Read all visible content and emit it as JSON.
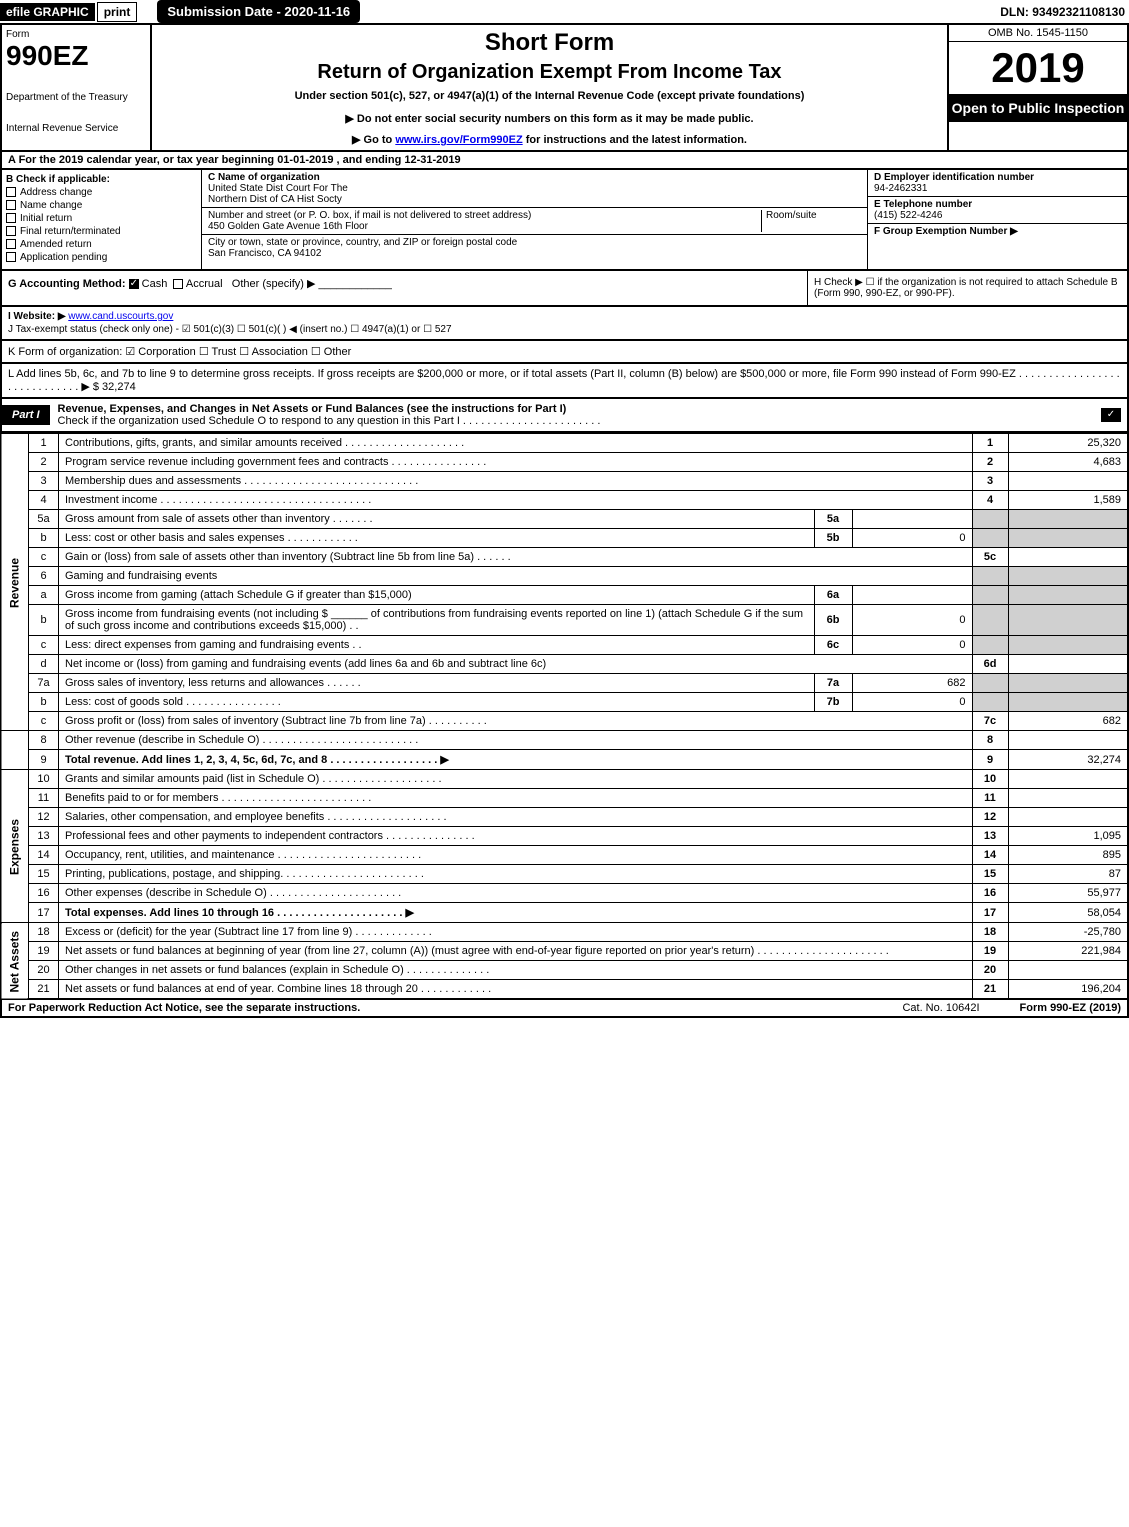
{
  "topbar": {
    "efile": "efile GRAPHIC",
    "print": "print",
    "sub_date": "Submission Date - 2020-11-16",
    "dln": "DLN: 93492321108130"
  },
  "header": {
    "form_label": "Form",
    "form_number": "990EZ",
    "dept": "Department of the Treasury",
    "irs": "Internal Revenue Service",
    "short_form": "Short Form",
    "return_title": "Return of Organization Exempt From Income Tax",
    "under_section": "Under section 501(c), 527, or 4947(a)(1) of the Internal Revenue Code (except private foundations)",
    "do_not": "▶ Do not enter social security numbers on this form as it may be made public.",
    "go_to_prefix": "▶ Go to ",
    "go_to_link": "www.irs.gov/Form990EZ",
    "go_to_suffix": " for instructions and the latest information.",
    "omb": "OMB No. 1545-1150",
    "year": "2019",
    "open": "Open to Public Inspection"
  },
  "line_a": "A For the 2019 calendar year, or tax year beginning 01-01-2019 , and ending 12-31-2019",
  "section_b": {
    "title": "B Check if applicable:",
    "items": [
      "Address change",
      "Name change",
      "Initial return",
      "Final return/terminated",
      "Amended return",
      "Application pending"
    ]
  },
  "section_c": {
    "name_label": "C Name of organization",
    "name_1": "United State Dist Court For The",
    "name_2": "Northern Dist of CA Hist Socty",
    "street_label": "Number and street (or P. O. box, if mail is not delivered to street address)",
    "street": "450 Golden Gate Avenue 16th Floor",
    "room_label": "Room/suite",
    "city_label": "City or town, state or province, country, and ZIP or foreign postal code",
    "city": "San Francisco, CA  94102"
  },
  "section_d": {
    "label": "D Employer identification number",
    "value": "94-2462331"
  },
  "section_e": {
    "label": "E Telephone number",
    "value": "(415) 522-4246"
  },
  "section_f": {
    "label": "F Group Exemption Number  ▶"
  },
  "section_g": {
    "label": "G Accounting Method:",
    "cash": "Cash",
    "accrual": "Accrual",
    "other": "Other (specify) ▶"
  },
  "section_h": "H  Check ▶  ☐  if the organization is not required to attach Schedule B (Form 990, 990-EZ, or 990-PF).",
  "section_i": {
    "label": "I Website: ▶",
    "value": "www.cand.uscourts.gov"
  },
  "section_j": "J Tax-exempt status (check only one) - ☑ 501(c)(3)  ☐ 501(c)(  ) ◀ (insert no.)  ☐ 4947(a)(1) or  ☐ 527",
  "section_k": "K Form of organization:   ☑ Corporation   ☐ Trust   ☐ Association   ☐ Other",
  "section_l": "L Add lines 5b, 6c, and 7b to line 9 to determine gross receipts. If gross receipts are $200,000 or more, or if total assets (Part II, column (B) below) are $500,000 or more, file Form 990 instead of Form 990-EZ . . . . . . . . . . . . . . . . . . . . . . . . . . . . . ▶ $ 32,274",
  "part_i": {
    "label": "Part I",
    "title": "Revenue, Expenses, and Changes in Net Assets or Fund Balances (see the instructions for Part I)",
    "check_line": "Check if the organization used Schedule O to respond to any question in this Part I . . . . . . . . . . . . . . . . . . . . . . ."
  },
  "sides": {
    "revenue": "Revenue",
    "expenses": "Expenses",
    "net": "Net Assets"
  },
  "lines": {
    "l1": {
      "n": "1",
      "d": "Contributions, gifts, grants, and similar amounts received . . . . . . . . . . . . . . . . . . . .",
      "num": "1",
      "v": "25,320"
    },
    "l2": {
      "n": "2",
      "d": "Program service revenue including government fees and contracts . . . . . . . . . . . . . . . .",
      "num": "2",
      "v": "4,683"
    },
    "l3": {
      "n": "3",
      "d": "Membership dues and assessments . . . . . . . . . . . . . . . . . . . . . . . . . . . . .",
      "num": "3",
      "v": ""
    },
    "l4": {
      "n": "4",
      "d": "Investment income . . . . . . . . . . . . . . . . . . . . . . . . . . . . . . . . . . .",
      "num": "4",
      "v": "1,589"
    },
    "l5a": {
      "n": "5a",
      "d": "Gross amount from sale of assets other than inventory . . . . . . .",
      "bn": "5a",
      "bv": ""
    },
    "l5b": {
      "n": "b",
      "d": "Less: cost or other basis and sales expenses . . . . . . . . . . . .",
      "bn": "5b",
      "bv": "0"
    },
    "l5c": {
      "n": "c",
      "d": "Gain or (loss) from sale of assets other than inventory (Subtract line 5b from line 5a) . . . . . .",
      "num": "5c",
      "v": ""
    },
    "l6": {
      "n": "6",
      "d": "Gaming and fundraising events"
    },
    "l6a": {
      "n": "a",
      "d": "Gross income from gaming (attach Schedule G if greater than $15,000)",
      "bn": "6a",
      "bv": ""
    },
    "l6b": {
      "n": "b",
      "d1": "Gross income from fundraising events (not including $ ",
      "d2": " of contributions from fundraising events reported on line 1) (attach Schedule G if the sum of such gross income and contributions exceeds $15,000)   . .",
      "bn": "6b",
      "bv": "0"
    },
    "l6c": {
      "n": "c",
      "d": "Less: direct expenses from gaming and fundraising events      . .",
      "bn": "6c",
      "bv": "0"
    },
    "l6d": {
      "n": "d",
      "d": "Net income or (loss) from gaming and fundraising events (add lines 6a and 6b and subtract line 6c)",
      "num": "6d",
      "v": ""
    },
    "l7a": {
      "n": "7a",
      "d": "Gross sales of inventory, less returns and allowances . . . . . .",
      "bn": "7a",
      "bv": "682"
    },
    "l7b": {
      "n": "b",
      "d": "Less: cost of goods sold        . . . . . . . . . . . . . . . .",
      "bn": "7b",
      "bv": "0"
    },
    "l7c": {
      "n": "c",
      "d": "Gross profit or (loss) from sales of inventory (Subtract line 7b from line 7a) . . . . . . . . . .",
      "num": "7c",
      "v": "682"
    },
    "l8": {
      "n": "8",
      "d": "Other revenue (describe in Schedule O) . . . . . . . . . . . . . . . . . . . . . . . . . .",
      "num": "8",
      "v": ""
    },
    "l9": {
      "n": "9",
      "d": "Total revenue. Add lines 1, 2, 3, 4, 5c, 6d, 7c, and 8  . . . . . . . . . . . . . . . . . .  ▶",
      "num": "9",
      "v": "32,274"
    },
    "l10": {
      "n": "10",
      "d": "Grants and similar amounts paid (list in Schedule O) . . . . . . . . . . . . . . . . . . . .",
      "num": "10",
      "v": ""
    },
    "l11": {
      "n": "11",
      "d": "Benefits paid to or for members        . . . . . . . . . . . . . . . . . . . . . . . . .",
      "num": "11",
      "v": ""
    },
    "l12": {
      "n": "12",
      "d": "Salaries, other compensation, and employee benefits . . . . . . . . . . . . . . . . . . . .",
      "num": "12",
      "v": ""
    },
    "l13": {
      "n": "13",
      "d": "Professional fees and other payments to independent contractors . . . . . . . . . . . . . . .",
      "num": "13",
      "v": "1,095"
    },
    "l14": {
      "n": "14",
      "d": "Occupancy, rent, utilities, and maintenance . . . . . . . . . . . . . . . . . . . . . . . .",
      "num": "14",
      "v": "895"
    },
    "l15": {
      "n": "15",
      "d": "Printing, publications, postage, and shipping. . . . . . . . . . . . . . . . . . . . . . . .",
      "num": "15",
      "v": "87"
    },
    "l16": {
      "n": "16",
      "d": "Other expenses (describe in Schedule O)       . . . . . . . . . . . . . . . . . . . . . .",
      "num": "16",
      "v": "55,977"
    },
    "l17": {
      "n": "17",
      "d": "Total expenses. Add lines 10 through 16      . . . . . . . . . . . . . . . . . . . . .  ▶",
      "num": "17",
      "v": "58,054"
    },
    "l18": {
      "n": "18",
      "d": "Excess or (deficit) for the year (Subtract line 17 from line 9)        . . . . . . . . . . . . .",
      "num": "18",
      "v": "-25,780"
    },
    "l19": {
      "n": "19",
      "d": "Net assets or fund balances at beginning of year (from line 27, column (A)) (must agree with end-of-year figure reported on prior year's return) . . . . . . . . . . . . . . . . . . . . . .",
      "num": "19",
      "v": "221,984"
    },
    "l20": {
      "n": "20",
      "d": "Other changes in net assets or fund balances (explain in Schedule O) . . . . . . . . . . . . . .",
      "num": "20",
      "v": ""
    },
    "l21": {
      "n": "21",
      "d": "Net assets or fund balances at end of year. Combine lines 18 through 20 . . . . . . . . . . . .",
      "num": "21",
      "v": "196,204"
    }
  },
  "footer": {
    "notice": "For Paperwork Reduction Act Notice, see the separate instructions.",
    "cat": "Cat. No. 10642I",
    "form_ref": "Form 990-EZ (2019)"
  },
  "colors": {
    "black": "#000000",
    "white": "#ffffff",
    "shade": "#d0d0d0",
    "link": "#0000ee"
  }
}
